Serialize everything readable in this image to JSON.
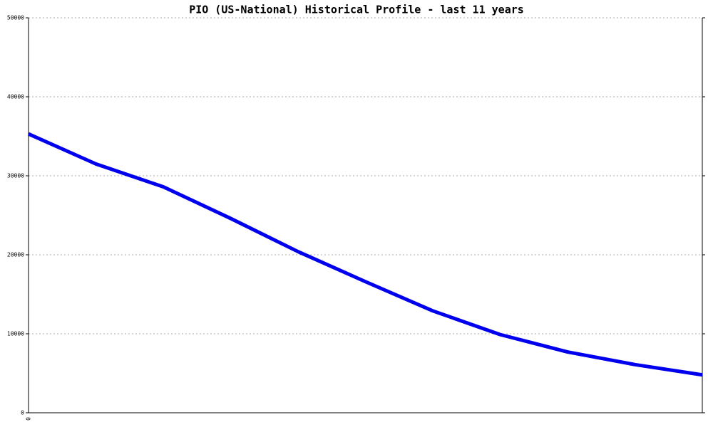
{
  "chart_data": {
    "type": "line",
    "title": "PIO (US-National) Historical Profile - last 11 years",
    "categories": [
      "0",
      null,
      null,
      null,
      null,
      null,
      null,
      null,
      null,
      null,
      null
    ],
    "series": [
      {
        "name": "PIO",
        "color": "#0000ee",
        "values": [
          35300,
          31500,
          28600,
          24600,
          20400,
          16600,
          12900,
          9900,
          7700,
          6100,
          4800
        ]
      }
    ],
    "ylim": [
      0,
      50000
    ],
    "yticks": [
      0,
      10000,
      20000,
      30000,
      40000,
      50000
    ],
    "grid": true
  }
}
